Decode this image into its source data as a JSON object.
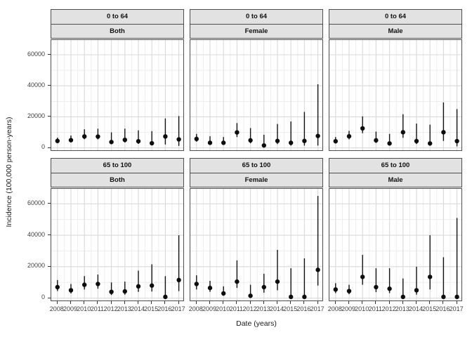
{
  "chart": {
    "y_axis_title": "Incidence (100,000 person-years)",
    "x_axis_title": "Date (years)"
  },
  "chart_data": {
    "type": "scatter",
    "subtype": "pointrange-faceted",
    "title": "",
    "xlabel": "Date (years)",
    "ylabel": "Incidence (100,000 person-years)",
    "x": [
      2008,
      2009,
      2010,
      2011,
      2012,
      2013,
      2014,
      2015,
      2016,
      2017
    ],
    "x_tick_labels": [
      "2008",
      "2009",
      "2010",
      "2011",
      "2012",
      "2013",
      "2014",
      "2015",
      "2016",
      "2017"
    ],
    "y_ticks": [
      0,
      20000,
      40000,
      60000
    ],
    "y_tick_labels": [
      "0",
      "20000",
      "40000",
      "60000"
    ],
    "y_minor_ticks": [
      10000,
      30000,
      50000
    ],
    "ylim": [
      -1500,
      69500
    ],
    "grid": "major-and-minor",
    "legend": "none",
    "facet_rows": [
      "0 to 64",
      "65 to 100"
    ],
    "facet_cols": [
      "Both",
      "Female",
      "Male"
    ],
    "panels": [
      {
        "age": "0 to 64",
        "sex": "Both",
        "values": [
          4500,
          5000,
          7400,
          7300,
          3800,
          5200,
          4300,
          3000,
          7400,
          5500
        ],
        "lower": [
          3000,
          3600,
          5600,
          5500,
          2400,
          3500,
          2600,
          1700,
          2200,
          1300
        ],
        "upper": [
          6600,
          8000,
          12000,
          12400,
          10000,
          12400,
          11300,
          10800,
          19000,
          20500
        ]
      },
      {
        "age": "0 to 64",
        "sex": "Female",
        "values": [
          5800,
          3300,
          3300,
          10000,
          4900,
          1600,
          4500,
          3300,
          4500,
          7700
        ],
        "lower": [
          4000,
          2000,
          2000,
          7000,
          3000,
          500,
          2500,
          1500,
          1500,
          1500
        ],
        "upper": [
          9000,
          7500,
          7000,
          16000,
          12800,
          8500,
          15400,
          17000,
          23200,
          41000
        ]
      },
      {
        "age": "0 to 64",
        "sex": "Male",
        "values": [
          4300,
          7500,
          12600,
          4900,
          2900,
          10100,
          4400,
          2900,
          10100,
          4400
        ],
        "lower": [
          2800,
          5500,
          9500,
          3200,
          1700,
          6500,
          2500,
          1400,
          4500,
          1000
        ],
        "upper": [
          7000,
          11000,
          20300,
          10500,
          9000,
          21700,
          15700,
          15000,
          29300,
          25000
        ]
      },
      {
        "age": "65 to 100",
        "sex": "Both",
        "values": [
          7000,
          5000,
          8500,
          9000,
          4000,
          4300,
          7500,
          8000,
          800,
          11500
        ],
        "lower": [
          4500,
          3000,
          5500,
          6000,
          2000,
          2200,
          4000,
          4200,
          0,
          4500
        ],
        "upper": [
          11500,
          9000,
          14000,
          15000,
          10000,
          10500,
          17500,
          21500,
          14000,
          40000
        ]
      },
      {
        "age": "65 to 100",
        "sex": "Female",
        "values": [
          9000,
          6500,
          3000,
          10500,
          1500,
          7000,
          10500,
          800,
          800,
          18000
        ],
        "lower": [
          5500,
          4000,
          1500,
          6500,
          200,
          3500,
          5000,
          0,
          0,
          8000
        ],
        "upper": [
          14500,
          11000,
          7500,
          24000,
          8500,
          15500,
          30700,
          19000,
          25300,
          65000
        ]
      },
      {
        "age": "65 to 100",
        "sex": "Male",
        "values": [
          5500,
          4500,
          13500,
          7000,
          6000,
          800,
          5000,
          13500,
          800,
          800
        ],
        "lower": [
          3200,
          2500,
          8500,
          3800,
          3200,
          0,
          2200,
          5500,
          0,
          0
        ],
        "upper": [
          9500,
          8500,
          27500,
          19000,
          19000,
          12500,
          20000,
          40000,
          26000,
          51000
        ]
      }
    ],
    "colors": {
      "point": "#0d0d0d",
      "range_line": "#111111",
      "grid_major": "#d9d9d9",
      "grid_minor": "#ededed",
      "panel_border": "#4d4d4d",
      "strip_fill": "#e2e2e2",
      "strip_border": "#4d4d4d",
      "tick_text": "#404040",
      "title_text": "#1a1a1a",
      "background": "#ffffff"
    }
  }
}
